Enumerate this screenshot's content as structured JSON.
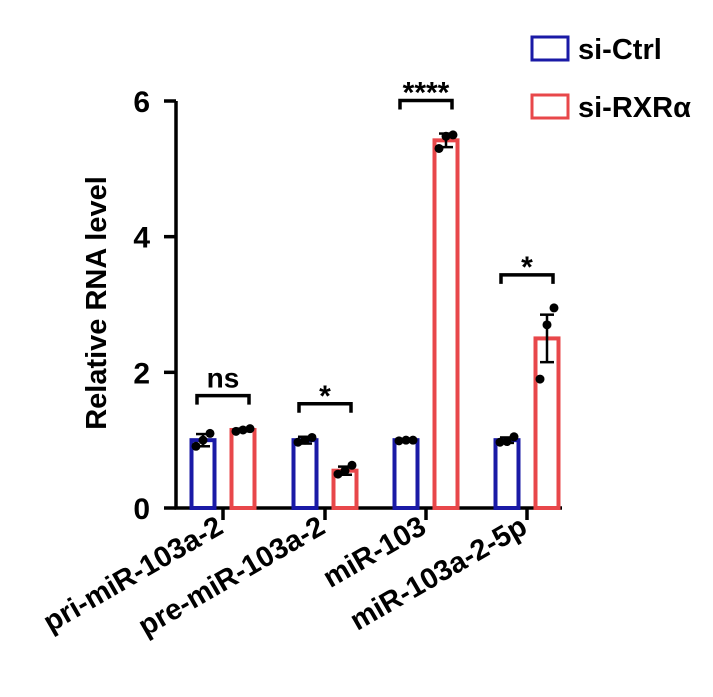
{
  "chart_data": {
    "type": "bar",
    "ylabel": "Relative RNA level",
    "ylim": [
      0,
      6
    ],
    "yticks": [
      0,
      2,
      4,
      6
    ],
    "categories": [
      "pri-miR-103a-2",
      "pre-miR-103a-2",
      "miR-103",
      "miR-103a-2-5p"
    ],
    "series": [
      {
        "name": "si-Ctrl",
        "color": "#1a1aa6",
        "values": [
          1.0,
          1.0,
          1.0,
          1.0
        ],
        "errors": [
          0.09,
          0.05,
          0.01,
          0.04
        ],
        "points": [
          [
            0.91,
            1.0,
            1.1
          ],
          [
            0.97,
            1.0,
            1.04
          ],
          [
            0.99,
            1.0,
            1.0
          ],
          [
            0.97,
            0.98,
            1.05
          ]
        ]
      },
      {
        "name": "si-RXRα",
        "color": "#e8474a",
        "values": [
          1.15,
          0.55,
          5.42,
          2.5
        ],
        "errors": [
          0.02,
          0.06,
          0.1,
          0.35
        ],
        "points": [
          [
            1.13,
            1.15,
            1.17
          ],
          [
            0.5,
            0.55,
            0.63
          ],
          [
            5.3,
            5.48,
            5.5
          ],
          [
            1.9,
            2.7,
            2.95
          ]
        ]
      }
    ],
    "significance": [
      "ns",
      "*",
      "****",
      "*"
    ],
    "legend_position": "top-right"
  }
}
